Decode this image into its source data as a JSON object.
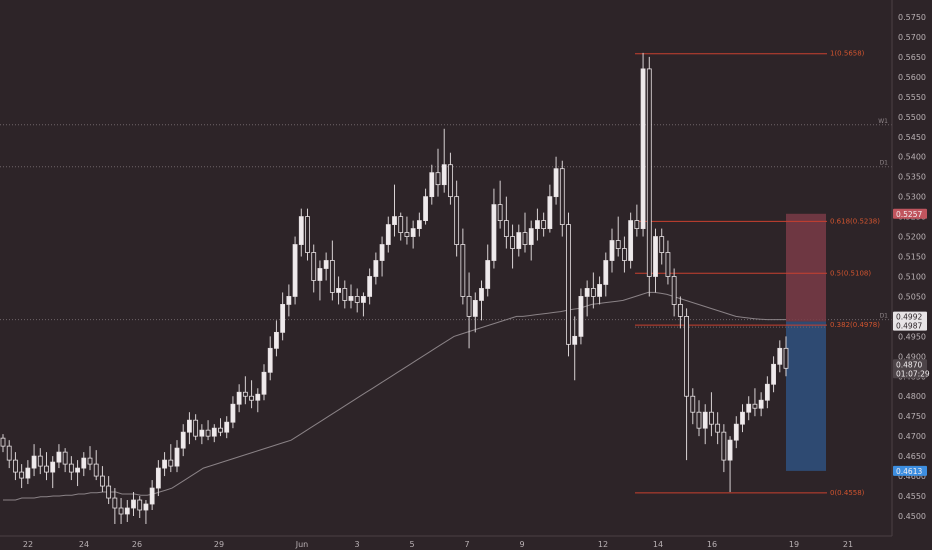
{
  "chart_data": {
    "type": "candlestick",
    "price_axis": {
      "min": 0.445,
      "max": 0.58,
      "ticks": [
        "0.5750",
        "0.5700",
        "0.5650",
        "0.5600",
        "0.5550",
        "0.5500",
        "0.5450",
        "0.5400",
        "0.5350",
        "0.5300",
        "0.5250",
        "0.5200",
        "0.5150",
        "0.5100",
        "0.5050",
        "0.5000",
        "0.4950",
        "0.4900",
        "0.4850",
        "0.4800",
        "0.4750",
        "0.4700",
        "0.4650",
        "0.4600",
        "0.4550",
        "0.4500"
      ]
    },
    "time_axis": {
      "ticks": [
        "22",
        "24",
        "26",
        "29",
        "Jun",
        "3",
        "5",
        "7",
        "9",
        "12",
        "14",
        "16",
        "19",
        "21"
      ]
    },
    "horizontal_levels": [
      {
        "label": "W1",
        "price": 0.548
      },
      {
        "label": "D1",
        "price": 0.5375
      },
      {
        "label": "D1",
        "price": 0.4992
      }
    ],
    "fibonacci": [
      {
        "label": "1(0.5658)",
        "price": 0.5658
      },
      {
        "label": "0.618(0.5238)",
        "price": 0.5238
      },
      {
        "label": "0.5(0.5108)",
        "price": 0.5108
      },
      {
        "label": "0.382(0.4978)",
        "price": 0.4978
      },
      {
        "label": "0(0.4558)",
        "price": 0.4558
      }
    ],
    "position_tool": {
      "stop": 0.5257,
      "entry": 0.4987,
      "target": 0.4613
    },
    "price_tags": [
      {
        "text": "0.5257",
        "price": 0.5257,
        "color": "#c0555e"
      },
      {
        "text": "0.4992",
        "price": 0.4992,
        "color": "#e8e4e6"
      },
      {
        "text": "0.4987",
        "price": 0.4987,
        "color": "#e8e4e6"
      },
      {
        "text": "0.4870",
        "price": 0.487,
        "color": "#4d4448"
      },
      {
        "text": "01:07:29",
        "price": 0.487,
        "color": "#4d4448"
      },
      {
        "text": "0.4613",
        "price": 0.4613,
        "color": "#3d8ee0"
      }
    ],
    "candles": [
      [
        0.4695,
        0.4705,
        0.466,
        0.4675
      ],
      [
        0.4675,
        0.469,
        0.462,
        0.464
      ],
      [
        0.464,
        0.466,
        0.459,
        0.461
      ],
      [
        0.461,
        0.463,
        0.457,
        0.4595
      ],
      [
        0.4595,
        0.464,
        0.458,
        0.462
      ],
      [
        0.462,
        0.468,
        0.46,
        0.465
      ],
      [
        0.465,
        0.467,
        0.4605,
        0.4625
      ],
      [
        0.4625,
        0.466,
        0.459,
        0.461
      ],
      [
        0.461,
        0.465,
        0.457,
        0.4635
      ],
      [
        0.4635,
        0.468,
        0.462,
        0.466
      ],
      [
        0.466,
        0.467,
        0.461,
        0.463
      ],
      [
        0.463,
        0.465,
        0.459,
        0.461
      ],
      [
        0.461,
        0.464,
        0.4575,
        0.462
      ],
      [
        0.462,
        0.466,
        0.46,
        0.4645
      ],
      [
        0.4645,
        0.4675,
        0.4615,
        0.463
      ],
      [
        0.463,
        0.4665,
        0.459,
        0.46
      ],
      [
        0.46,
        0.4625,
        0.456,
        0.4575
      ],
      [
        0.4575,
        0.46,
        0.453,
        0.4545
      ],
      [
        0.4545,
        0.457,
        0.448,
        0.452
      ],
      [
        0.452,
        0.4545,
        0.448,
        0.4505
      ],
      [
        0.4505,
        0.454,
        0.4485,
        0.452
      ],
      [
        0.452,
        0.456,
        0.45,
        0.454
      ],
      [
        0.454,
        0.455,
        0.4495,
        0.4515
      ],
      [
        0.4515,
        0.454,
        0.448,
        0.453
      ],
      [
        0.453,
        0.459,
        0.4515,
        0.457
      ],
      [
        0.457,
        0.464,
        0.455,
        0.462
      ],
      [
        0.462,
        0.466,
        0.46,
        0.464
      ],
      [
        0.464,
        0.468,
        0.461,
        0.4625
      ],
      [
        0.4625,
        0.469,
        0.461,
        0.467
      ],
      [
        0.467,
        0.473,
        0.465,
        0.471
      ],
      [
        0.471,
        0.476,
        0.468,
        0.474
      ],
      [
        0.474,
        0.4755,
        0.469,
        0.47
      ],
      [
        0.47,
        0.473,
        0.468,
        0.4715
      ],
      [
        0.4715,
        0.474,
        0.469,
        0.47
      ],
      [
        0.47,
        0.473,
        0.4685,
        0.472
      ],
      [
        0.472,
        0.4745,
        0.47,
        0.471
      ],
      [
        0.471,
        0.475,
        0.4695,
        0.4735
      ],
      [
        0.4735,
        0.48,
        0.472,
        0.478
      ],
      [
        0.478,
        0.483,
        0.476,
        0.481
      ],
      [
        0.481,
        0.485,
        0.478,
        0.48
      ],
      [
        0.48,
        0.484,
        0.477,
        0.479
      ],
      [
        0.479,
        0.482,
        0.476,
        0.4805
      ],
      [
        0.4805,
        0.488,
        0.479,
        0.486
      ],
      [
        0.486,
        0.495,
        0.484,
        0.492
      ],
      [
        0.492,
        0.499,
        0.49,
        0.496
      ],
      [
        0.496,
        0.506,
        0.494,
        0.503
      ],
      [
        0.503,
        0.508,
        0.5,
        0.505
      ],
      [
        0.505,
        0.52,
        0.503,
        0.518
      ],
      [
        0.518,
        0.527,
        0.515,
        0.525
      ],
      [
        0.525,
        0.527,
        0.514,
        0.516
      ],
      [
        0.516,
        0.518,
        0.506,
        0.509
      ],
      [
        0.509,
        0.514,
        0.504,
        0.512
      ],
      [
        0.512,
        0.516,
        0.509,
        0.514
      ],
      [
        0.514,
        0.519,
        0.504,
        0.506
      ],
      [
        0.506,
        0.51,
        0.503,
        0.507
      ],
      [
        0.507,
        0.509,
        0.502,
        0.504
      ],
      [
        0.504,
        0.508,
        0.502,
        0.505
      ],
      [
        0.505,
        0.507,
        0.501,
        0.5035
      ],
      [
        0.5035,
        0.506,
        0.5,
        0.505
      ],
      [
        0.505,
        0.512,
        0.503,
        0.51
      ],
      [
        0.51,
        0.516,
        0.508,
        0.514
      ],
      [
        0.514,
        0.52,
        0.51,
        0.518
      ],
      [
        0.518,
        0.525,
        0.516,
        0.523
      ],
      [
        0.523,
        0.533,
        0.52,
        0.525
      ],
      [
        0.525,
        0.526,
        0.519,
        0.521
      ],
      [
        0.521,
        0.525,
        0.518,
        0.52
      ],
      [
        0.52,
        0.524,
        0.517,
        0.522
      ],
      [
        0.522,
        0.526,
        0.52,
        0.524
      ],
      [
        0.524,
        0.532,
        0.523,
        0.53
      ],
      [
        0.53,
        0.538,
        0.528,
        0.536
      ],
      [
        0.536,
        0.542,
        0.53,
        0.533
      ],
      [
        0.533,
        0.547,
        0.531,
        0.538
      ],
      [
        0.538,
        0.541,
        0.528,
        0.53
      ],
      [
        0.53,
        0.534,
        0.515,
        0.518
      ],
      [
        0.518,
        0.522,
        0.503,
        0.505
      ],
      [
        0.505,
        0.511,
        0.492,
        0.5
      ],
      [
        0.5,
        0.506,
        0.496,
        0.504
      ],
      [
        0.504,
        0.509,
        0.499,
        0.507
      ],
      [
        0.507,
        0.518,
        0.505,
        0.514
      ],
      [
        0.514,
        0.532,
        0.512,
        0.528
      ],
      [
        0.528,
        0.534,
        0.522,
        0.524
      ],
      [
        0.524,
        0.53,
        0.517,
        0.52
      ],
      [
        0.52,
        0.523,
        0.512,
        0.517
      ],
      [
        0.517,
        0.523,
        0.515,
        0.521
      ],
      [
        0.521,
        0.526,
        0.516,
        0.518
      ],
      [
        0.518,
        0.524,
        0.514,
        0.522
      ],
      [
        0.522,
        0.527,
        0.519,
        0.524
      ],
      [
        0.524,
        0.526,
        0.52,
        0.522
      ],
      [
        0.522,
        0.533,
        0.521,
        0.53
      ],
      [
        0.53,
        0.54,
        0.528,
        0.537
      ],
      [
        0.537,
        0.539,
        0.52,
        0.523
      ],
      [
        0.523,
        0.526,
        0.49,
        0.493
      ],
      [
        0.493,
        0.5,
        0.484,
        0.495
      ],
      [
        0.495,
        0.507,
        0.493,
        0.505
      ],
      [
        0.505,
        0.509,
        0.5,
        0.507
      ],
      [
        0.507,
        0.511,
        0.502,
        0.505
      ],
      [
        0.505,
        0.51,
        0.503,
        0.508
      ],
      [
        0.508,
        0.516,
        0.505,
        0.514
      ],
      [
        0.514,
        0.522,
        0.511,
        0.519
      ],
      [
        0.519,
        0.525,
        0.515,
        0.517
      ],
      [
        0.517,
        0.52,
        0.511,
        0.514
      ],
      [
        0.514,
        0.526,
        0.512,
        0.524
      ],
      [
        0.524,
        0.528,
        0.52,
        0.522
      ],
      [
        0.522,
        0.566,
        0.52,
        0.562
      ],
      [
        0.562,
        0.565,
        0.505,
        0.51
      ],
      [
        0.51,
        0.522,
        0.506,
        0.52
      ],
      [
        0.52,
        0.522,
        0.513,
        0.516
      ],
      [
        0.516,
        0.519,
        0.508,
        0.51
      ],
      [
        0.51,
        0.512,
        0.5,
        0.503
      ],
      [
        0.503,
        0.505,
        0.497,
        0.5
      ],
      [
        0.5,
        0.502,
        0.464,
        0.48
      ],
      [
        0.48,
        0.482,
        0.473,
        0.476
      ],
      [
        0.476,
        0.479,
        0.47,
        0.472
      ],
      [
        0.472,
        0.478,
        0.468,
        0.476
      ],
      [
        0.476,
        0.481,
        0.47,
        0.473
      ],
      [
        0.473,
        0.476,
        0.468,
        0.471
      ],
      [
        0.471,
        0.473,
        0.461,
        0.464
      ],
      [
        0.464,
        0.47,
        0.456,
        0.469
      ],
      [
        0.469,
        0.475,
        0.467,
        0.473
      ],
      [
        0.473,
        0.478,
        0.471,
        0.476
      ],
      [
        0.476,
        0.48,
        0.474,
        0.478
      ],
      [
        0.478,
        0.482,
        0.475,
        0.477
      ],
      [
        0.477,
        0.481,
        0.475,
        0.479
      ],
      [
        0.479,
        0.485,
        0.477,
        0.483
      ],
      [
        0.483,
        0.49,
        0.481,
        0.488
      ],
      [
        0.488,
        0.494,
        0.486,
        0.492
      ],
      [
        0.492,
        0.495,
        0.485,
        0.487
      ]
    ],
    "moving_average": [
      0.454,
      0.454,
      0.454,
      0.4545,
      0.4545,
      0.4545,
      0.4548,
      0.4548,
      0.455,
      0.455,
      0.4552,
      0.4552,
      0.4555,
      0.4555,
      0.4558,
      0.4558,
      0.456,
      0.456,
      0.456,
      0.4555,
      0.4555,
      0.4555,
      0.4552,
      0.4552,
      0.4555,
      0.456,
      0.4565,
      0.457,
      0.458,
      0.459,
      0.46,
      0.461,
      0.462,
      0.4625,
      0.463,
      0.4635,
      0.464,
      0.4645,
      0.465,
      0.4655,
      0.466,
      0.4665,
      0.467,
      0.4675,
      0.468,
      0.4685,
      0.469,
      0.47,
      0.471,
      0.472,
      0.473,
      0.474,
      0.475,
      0.476,
      0.477,
      0.478,
      0.479,
      0.48,
      0.481,
      0.482,
      0.483,
      0.484,
      0.485,
      0.486,
      0.487,
      0.488,
      0.489,
      0.49,
      0.491,
      0.492,
      0.493,
      0.494,
      0.495,
      0.4955,
      0.496,
      0.4965,
      0.497,
      0.4975,
      0.498,
      0.4985,
      0.499,
      0.4995,
      0.5,
      0.5,
      0.5002,
      0.5004,
      0.5006,
      0.5008,
      0.501,
      0.5012,
      0.5015,
      0.5018,
      0.502,
      0.5025,
      0.503,
      0.5032,
      0.5034,
      0.5036,
      0.5038,
      0.504,
      0.5045,
      0.505,
      0.5055,
      0.506,
      0.506,
      0.5058,
      0.5055,
      0.505,
      0.5045,
      0.504,
      0.5035,
      0.503,
      0.5025,
      0.502,
      0.5015,
      0.501,
      0.5005,
      0.5,
      0.4998,
      0.4996,
      0.4994,
      0.4993,
      0.4992,
      0.4992,
      0.4992,
      0.4992
    ],
    "grid": false,
    "legend": "none"
  }
}
